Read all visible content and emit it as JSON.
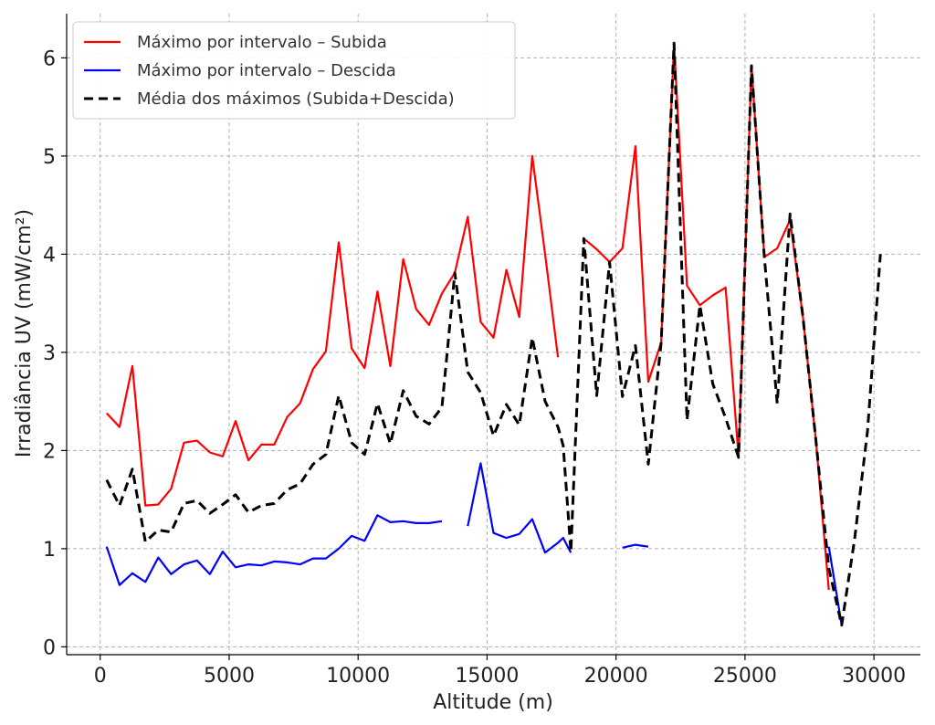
{
  "chart_data": {
    "type": "line",
    "xlabel": "Altitude (m)",
    "ylabel": "Irradiância UV (mW/cm²)",
    "xlim": [
      -1300,
      31800
    ],
    "ylim": [
      -0.08,
      6.45
    ],
    "xticks": [
      0,
      5000,
      10000,
      15000,
      20000,
      25000,
      30000
    ],
    "yticks": [
      0,
      1,
      2,
      3,
      4,
      5,
      6
    ],
    "grid": true,
    "legend_position": "top-left",
    "series": [
      {
        "name": "Máximo por intervalo – Subida",
        "color": "#ff0000",
        "style": "solid",
        "points": [
          [
            250,
            2.38
          ],
          [
            750,
            2.24
          ],
          [
            1250,
            2.86
          ],
          [
            1750,
            1.44
          ],
          [
            2250,
            1.45
          ],
          [
            2750,
            1.61
          ],
          [
            3250,
            2.08
          ],
          [
            3750,
            2.1
          ],
          [
            4250,
            1.98
          ],
          [
            4750,
            1.94
          ],
          [
            5250,
            2.3
          ],
          [
            5750,
            1.9
          ],
          [
            6250,
            2.06
          ],
          [
            6750,
            2.06
          ],
          [
            7250,
            2.34
          ],
          [
            7750,
            2.48
          ],
          [
            8250,
            2.83
          ],
          [
            8750,
            3.01
          ],
          [
            9250,
            4.12
          ],
          [
            9750,
            3.04
          ],
          [
            10250,
            2.84
          ],
          [
            10750,
            3.62
          ],
          [
            11250,
            2.86
          ],
          [
            11750,
            3.95
          ],
          [
            12250,
            3.44
          ],
          [
            12750,
            3.28
          ],
          [
            13250,
            3.6
          ],
          [
            13750,
            3.81
          ],
          [
            14250,
            4.38
          ],
          [
            14750,
            3.31
          ],
          [
            15250,
            3.15
          ],
          [
            15750,
            3.84
          ],
          [
            16250,
            3.36
          ],
          [
            16750,
            5.0
          ],
          [
            17250,
            4.0
          ],
          [
            17750,
            2.95
          ],
          null,
          [
            18750,
            4.16
          ],
          [
            19250,
            4.05
          ],
          [
            19750,
            3.92
          ],
          [
            20250,
            4.06
          ],
          [
            20750,
            5.1
          ],
          [
            21250,
            2.7
          ],
          [
            21750,
            3.1
          ],
          [
            22250,
            6.15
          ],
          [
            22750,
            3.68
          ],
          [
            23250,
            3.48
          ],
          [
            23750,
            3.58
          ],
          [
            24250,
            3.66
          ],
          [
            24750,
            1.93
          ],
          [
            25250,
            5.92
          ],
          [
            25750,
            3.97
          ],
          [
            26250,
            4.06
          ],
          [
            26750,
            4.35
          ],
          [
            27250,
            3.35
          ],
          [
            27750,
            2.1
          ],
          [
            28250,
            0.58
          ]
        ]
      },
      {
        "name": "Máximo por intervalo – Descida",
        "color": "#0000ff",
        "style": "solid",
        "points": [
          [
            250,
            1.02
          ],
          [
            750,
            0.63
          ],
          [
            1250,
            0.75
          ],
          [
            1750,
            0.66
          ],
          [
            2250,
            0.91
          ],
          [
            2750,
            0.74
          ],
          [
            3250,
            0.84
          ],
          [
            3750,
            0.88
          ],
          [
            4250,
            0.74
          ],
          [
            4750,
            0.97
          ],
          [
            5250,
            0.81
          ],
          [
            5750,
            0.84
          ],
          [
            6250,
            0.83
          ],
          [
            6750,
            0.87
          ],
          [
            7250,
            0.86
          ],
          [
            7750,
            0.84
          ],
          [
            8250,
            0.9
          ],
          [
            8750,
            0.9
          ],
          [
            9250,
            1.0
          ],
          [
            9750,
            1.13
          ],
          [
            10250,
            1.08
          ],
          [
            10750,
            1.34
          ],
          [
            11250,
            1.27
          ],
          [
            11750,
            1.28
          ],
          [
            12250,
            1.26
          ],
          [
            12750,
            1.26
          ],
          [
            13250,
            1.28
          ],
          null,
          [
            14250,
            1.23
          ],
          [
            14750,
            1.87
          ],
          [
            15250,
            1.16
          ],
          [
            15750,
            1.11
          ],
          [
            16250,
            1.15
          ],
          [
            16750,
            1.3
          ],
          [
            17250,
            0.96
          ],
          [
            17750,
            1.06
          ],
          [
            17950,
            1.11
          ],
          [
            18250,
            0.96
          ],
          null,
          [
            20250,
            1.01
          ],
          [
            20750,
            1.04
          ],
          [
            21250,
            1.02
          ],
          null,
          [
            28250,
            1.02
          ],
          [
            28750,
            0.22
          ]
        ]
      },
      {
        "name": "Média dos máximos (Subida+Descida)",
        "color": "#000000",
        "style": "dashed",
        "points": [
          [
            250,
            1.7
          ],
          [
            750,
            1.44
          ],
          [
            1250,
            1.81
          ],
          [
            1750,
            1.07
          ],
          [
            2250,
            1.19
          ],
          [
            2750,
            1.17
          ],
          [
            3250,
            1.46
          ],
          [
            3750,
            1.49
          ],
          [
            4250,
            1.36
          ],
          [
            4750,
            1.45
          ],
          [
            5250,
            1.55
          ],
          [
            5750,
            1.37
          ],
          [
            6250,
            1.44
          ],
          [
            6750,
            1.46
          ],
          [
            7250,
            1.6
          ],
          [
            7750,
            1.66
          ],
          [
            8250,
            1.86
          ],
          [
            8750,
            1.96
          ],
          [
            9250,
            2.56
          ],
          [
            9750,
            2.08
          ],
          [
            10250,
            1.96
          ],
          [
            10750,
            2.48
          ],
          [
            11250,
            2.07
          ],
          [
            11750,
            2.61
          ],
          [
            12250,
            2.35
          ],
          [
            12750,
            2.27
          ],
          [
            13250,
            2.44
          ],
          [
            13750,
            3.81
          ],
          [
            14250,
            2.8
          ],
          [
            14750,
            2.59
          ],
          [
            15250,
            2.15
          ],
          [
            15750,
            2.47
          ],
          [
            16250,
            2.26
          ],
          [
            16750,
            3.15
          ],
          [
            17250,
            2.5
          ],
          [
            17750,
            2.24
          ],
          [
            17950,
            2.05
          ],
          [
            18250,
            0.97
          ],
          [
            18750,
            4.16
          ],
          [
            19250,
            2.56
          ],
          [
            19750,
            3.92
          ],
          [
            20250,
            2.55
          ],
          [
            20750,
            3.07
          ],
          [
            21250,
            1.86
          ],
          [
            21750,
            3.1
          ],
          [
            22250,
            6.15
          ],
          [
            22750,
            2.31
          ],
          [
            23250,
            3.48
          ],
          [
            23750,
            2.68
          ],
          [
            24250,
            2.33
          ],
          [
            24750,
            1.93
          ],
          [
            25250,
            5.92
          ],
          [
            25750,
            3.97
          ],
          [
            26250,
            2.48
          ],
          [
            26750,
            4.41
          ],
          [
            27250,
            3.35
          ],
          [
            27750,
            2.1
          ],
          [
            28250,
            0.8
          ],
          [
            28750,
            0.22
          ],
          [
            29250,
            1.1
          ],
          [
            29750,
            2.2
          ],
          [
            30250,
            4.0
          ]
        ]
      }
    ]
  }
}
